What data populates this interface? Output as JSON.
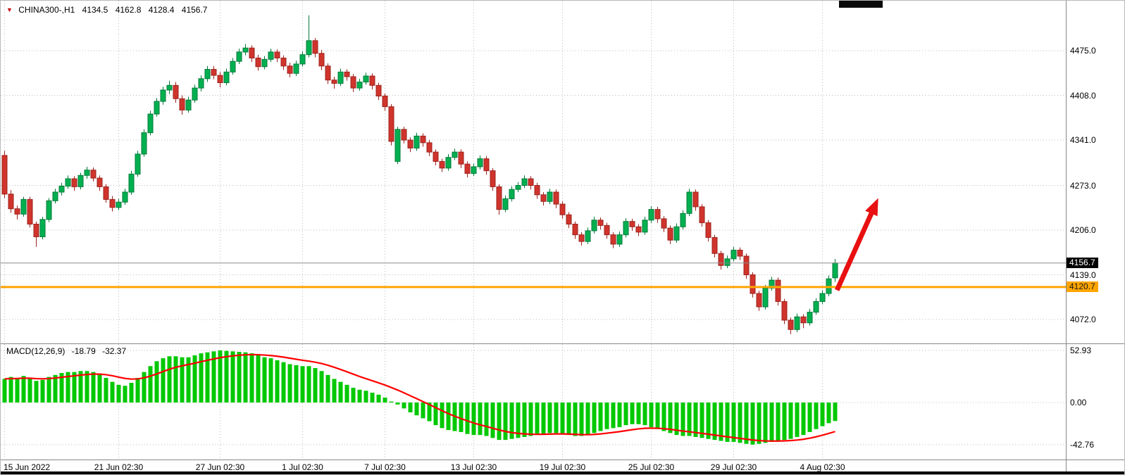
{
  "header": {
    "symbol_period": "CHINA300-,H1",
    "open": "4134.5",
    "high": "4162.8",
    "low": "4128.4",
    "close": "4156.7"
  },
  "macd": {
    "label": "MACD(12,26,9)",
    "main_value": "-18.79",
    "signal_value": "-32.37"
  },
  "colors": {
    "up": "#00b050",
    "up_stroke": "#007a38",
    "down": "#d0342c",
    "down_stroke": "#9c231d",
    "histogram": "#00c800",
    "signal": "#ff0000",
    "hline": "#ffa500",
    "arrow": "#e81010",
    "grid": "#bdbdbd",
    "current_line": "#8a8a8a",
    "separator": "#888888"
  },
  "chart_data": {
    "type": "candlestick",
    "title": "CHINA300- hourly candlestick chart with MACD(12,26,9) indicator",
    "price_axis_range": [
      4036,
      4550
    ],
    "macd_axis_range": [
      -57,
      60
    ],
    "grid": true,
    "price_ticks": [
      4475,
      4408,
      4341,
      4273,
      4206,
      4139,
      4072
    ],
    "macd_ticks": [
      52.93,
      0,
      -42.76
    ],
    "last_price": 4156.7,
    "hline": {
      "price": 4120.7,
      "color": "#ffa500"
    },
    "time_axis": [
      {
        "label": "15 Jun 2022",
        "bar": 0
      },
      {
        "label": "21 Jun 02:30",
        "bar": 18
      },
      {
        "label": "27 Jun 02:30",
        "bar": 34
      },
      {
        "label": "1 Jul 02:30",
        "bar": 47
      },
      {
        "label": "7 Jul 02:30",
        "bar": 60
      },
      {
        "label": "13 Jul 02:30",
        "bar": 74
      },
      {
        "label": "19 Jul 02:30",
        "bar": 88
      },
      {
        "label": "25 Jul 02:30",
        "bar": 102
      },
      {
        "label": "29 Jul 02:30",
        "bar": 115
      },
      {
        "label": "4 Aug 02:30",
        "bar": 129
      }
    ],
    "annotations": [
      {
        "type": "arrow",
        "direction": "up",
        "color": "#e81010",
        "from": {
          "bar": 131.3,
          "price": 4116
        },
        "to": {
          "bar": 137.8,
          "price": 4254
        }
      }
    ],
    "candles": [
      [
        4318,
        4325,
        4254,
        4260
      ],
      [
        4260,
        4266,
        4232,
        4238
      ],
      [
        4238,
        4243,
        4222,
        4230
      ],
      [
        4230,
        4256,
        4226,
        4252
      ],
      [
        4252,
        4256,
        4210,
        4215
      ],
      [
        4215,
        4219,
        4181,
        4196
      ],
      [
        4196,
        4226,
        4192,
        4222
      ],
      [
        4222,
        4254,
        4218,
        4250
      ],
      [
        4250,
        4268,
        4246,
        4263
      ],
      [
        4263,
        4277,
        4258,
        4272
      ],
      [
        4272,
        4288,
        4268,
        4283
      ],
      [
        4283,
        4287,
        4265,
        4271
      ],
      [
        4271,
        4292,
        4267,
        4288
      ],
      [
        4288,
        4301,
        4283,
        4296
      ],
      [
        4296,
        4300,
        4279,
        4284
      ],
      [
        4284,
        4288,
        4265,
        4271
      ],
      [
        4271,
        4275,
        4247,
        4252
      ],
      [
        4252,
        4257,
        4234,
        4240
      ],
      [
        4240,
        4253,
        4236,
        4248
      ],
      [
        4248,
        4268,
        4244,
        4263
      ],
      [
        4263,
        4295,
        4259,
        4290
      ],
      [
        4290,
        4325,
        4286,
        4320
      ],
      [
        4320,
        4357,
        4316,
        4352
      ],
      [
        4352,
        4385,
        4348,
        4380
      ],
      [
        4380,
        4404,
        4376,
        4399
      ],
      [
        4399,
        4421,
        4394,
        4416
      ],
      [
        4416,
        4430,
        4410,
        4423
      ],
      [
        4423,
        4428,
        4397,
        4403
      ],
      [
        4403,
        4408,
        4379,
        4386
      ],
      [
        4386,
        4406,
        4382,
        4401
      ],
      [
        4401,
        4424,
        4397,
        4419
      ],
      [
        4419,
        4438,
        4414,
        4433
      ],
      [
        4433,
        4452,
        4428,
        4447
      ],
      [
        4447,
        4452,
        4432,
        4438
      ],
      [
        4438,
        4443,
        4420,
        4427
      ],
      [
        4427,
        4448,
        4423,
        4443
      ],
      [
        4443,
        4464,
        4439,
        4459
      ],
      [
        4459,
        4478,
        4455,
        4473
      ],
      [
        4473,
        4485,
        4468,
        4479
      ],
      [
        4479,
        4483,
        4458,
        4464
      ],
      [
        4464,
        4469,
        4445,
        4451
      ],
      [
        4451,
        4467,
        4447,
        4462
      ],
      [
        4462,
        4478,
        4458,
        4473
      ],
      [
        4473,
        4477,
        4458,
        4464
      ],
      [
        4464,
        4468,
        4446,
        4452
      ],
      [
        4452,
        4457,
        4435,
        4441
      ],
      [
        4441,
        4460,
        4437,
        4455
      ],
      [
        4455,
        4474,
        4451,
        4469
      ],
      [
        4469,
        4528,
        4465,
        4490
      ],
      [
        4490,
        4494,
        4465,
        4471
      ],
      [
        4471,
        4476,
        4446,
        4452
      ],
      [
        4452,
        4456,
        4425,
        4431
      ],
      [
        4431,
        4436,
        4418,
        4426
      ],
      [
        4426,
        4448,
        4422,
        4443
      ],
      [
        4443,
        4447,
        4430,
        4436
      ],
      [
        4436,
        4440,
        4413,
        4419
      ],
      [
        4419,
        4433,
        4415,
        4428
      ],
      [
        4428,
        4442,
        4424,
        4437
      ],
      [
        4437,
        4441,
        4417,
        4423
      ],
      [
        4423,
        4427,
        4401,
        4407
      ],
      [
        4407,
        4411,
        4385,
        4391
      ],
      [
        4391,
        4395,
        4333,
        4339
      ],
      [
        4309,
        4361,
        4305,
        4357
      ],
      [
        4357,
        4361,
        4336,
        4341
      ],
      [
        4341,
        4345,
        4323,
        4329
      ],
      [
        4329,
        4352,
        4325,
        4347
      ],
      [
        4347,
        4351,
        4331,
        4337
      ],
      [
        4337,
        4341,
        4317,
        4323
      ],
      [
        4323,
        4327,
        4303,
        4309
      ],
      [
        4309,
        4313,
        4293,
        4299
      ],
      [
        4299,
        4320,
        4295,
        4315
      ],
      [
        4315,
        4328,
        4311,
        4323
      ],
      [
        4323,
        4327,
        4299,
        4305
      ],
      [
        4305,
        4309,
        4285,
        4291
      ],
      [
        4291,
        4306,
        4287,
        4301
      ],
      [
        4301,
        4318,
        4297,
        4313
      ],
      [
        4313,
        4317,
        4289,
        4295
      ],
      [
        4295,
        4299,
        4265,
        4271
      ],
      [
        4271,
        4275,
        4229,
        4237
      ],
      [
        4237,
        4258,
        4233,
        4253
      ],
      [
        4253,
        4272,
        4249,
        4267
      ],
      [
        4267,
        4278,
        4263,
        4273
      ],
      [
        4273,
        4288,
        4269,
        4283
      ],
      [
        4283,
        4287,
        4267,
        4273
      ],
      [
        4273,
        4277,
        4253,
        4259
      ],
      [
        4259,
        4263,
        4243,
        4249
      ],
      [
        4249,
        4268,
        4245,
        4263
      ],
      [
        4263,
        4267,
        4239,
        4245
      ],
      [
        4245,
        4249,
        4223,
        4229
      ],
      [
        4229,
        4233,
        4209,
        4215
      ],
      [
        4215,
        4219,
        4193,
        4199
      ],
      [
        4199,
        4203,
        4183,
        4189
      ],
      [
        4189,
        4210,
        4185,
        4205
      ],
      [
        4205,
        4226,
        4201,
        4221
      ],
      [
        4221,
        4225,
        4207,
        4213
      ],
      [
        4213,
        4217,
        4193,
        4199
      ],
      [
        4199,
        4203,
        4179,
        4185
      ],
      [
        4185,
        4204,
        4181,
        4199
      ],
      [
        4199,
        4224,
        4195,
        4219
      ],
      [
        4219,
        4223,
        4205,
        4211
      ],
      [
        4211,
        4215,
        4197,
        4203
      ],
      [
        4203,
        4226,
        4199,
        4221
      ],
      [
        4221,
        4242,
        4217,
        4237
      ],
      [
        4237,
        4241,
        4217,
        4223
      ],
      [
        4223,
        4227,
        4203,
        4209
      ],
      [
        4209,
        4213,
        4185,
        4191
      ],
      [
        4191,
        4216,
        4187,
        4211
      ],
      [
        4211,
        4236,
        4207,
        4231
      ],
      [
        4231,
        4268,
        4227,
        4263
      ],
      [
        4263,
        4267,
        4235,
        4241
      ],
      [
        4241,
        4245,
        4211,
        4217
      ],
      [
        4217,
        4221,
        4189,
        4195
      ],
      [
        4195,
        4199,
        4165,
        4171
      ],
      [
        4171,
        4175,
        4147,
        4153
      ],
      [
        4153,
        4168,
        4149,
        4163
      ],
      [
        4163,
        4181,
        4159,
        4176
      ],
      [
        4176,
        4180,
        4161,
        4167
      ],
      [
        4167,
        4171,
        4133,
        4139
      ],
      [
        4139,
        4143,
        4105,
        4111
      ],
      [
        4111,
        4115,
        4085,
        4091
      ],
      [
        4091,
        4124,
        4087,
        4119
      ],
      [
        4119,
        4136,
        4115,
        4131
      ],
      [
        4131,
        4135,
        4093,
        4099
      ],
      [
        4099,
        4103,
        4065,
        4071
      ],
      [
        4071,
        4075,
        4050,
        4057
      ],
      [
        4057,
        4081,
        4053,
        4076
      ],
      [
        4076,
        4080,
        4059,
        4067
      ],
      [
        4067,
        4088,
        4063,
        4083
      ],
      [
        4083,
        4104,
        4079,
        4099
      ],
      [
        4099,
        4116,
        4095,
        4111
      ],
      [
        4111,
        4138,
        4107,
        4133
      ],
      [
        4134.5,
        4162.8,
        4128.4,
        4156.7
      ]
    ],
    "macd_histogram": [
      24,
      26,
      25,
      27,
      24,
      22,
      23,
      26,
      28,
      30,
      31,
      31,
      32,
      32,
      31,
      29,
      25,
      21,
      18,
      17,
      20,
      25,
      31,
      37,
      42,
      45,
      47,
      47,
      46,
      46,
      48,
      50,
      51,
      52,
      52.93,
      52.5,
      52,
      51.5,
      51,
      50,
      48,
      46,
      45,
      43,
      41,
      39,
      38,
      37,
      37,
      35,
      32,
      28,
      24,
      21,
      18,
      15,
      13,
      12,
      10,
      8,
      5,
      1,
      -2,
      -6,
      -10,
      -13,
      -16,
      -19,
      -23,
      -26,
      -28,
      -29,
      -30,
      -32,
      -33,
      -33,
      -34,
      -36,
      -38,
      -38,
      -37,
      -36,
      -35,
      -34,
      -33,
      -32,
      -31,
      -31,
      -32,
      -33,
      -34,
      -34,
      -33,
      -31,
      -29,
      -27,
      -26,
      -25,
      -23,
      -22,
      -22,
      -23,
      -25,
      -27,
      -29,
      -31,
      -33,
      -34,
      -34,
      -35,
      -36,
      -37,
      -38,
      -39,
      -40,
      -40,
      -41,
      -42,
      -42.76,
      -42,
      -41,
      -40,
      -39,
      -38,
      -37,
      -35,
      -33,
      -30,
      -27,
      -24,
      -21,
      -18.79
    ]
  }
}
